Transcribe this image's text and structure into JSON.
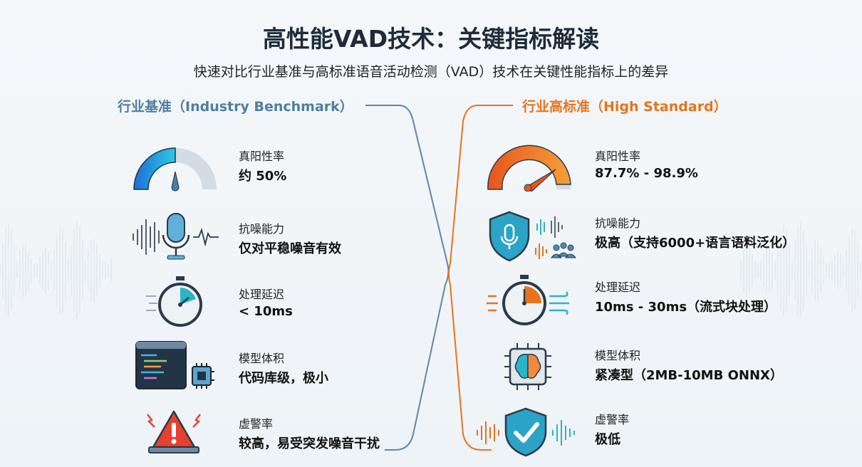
{
  "title": "高性能VAD技术：关键指标解读",
  "subtitle": "快速对比行业基准与高标准语音活动检测（VAD）技术在关键性能指标上的差异",
  "colors": {
    "benchmark": "#4d7f9f",
    "high_standard": "#e8731c",
    "gauge_blue": "#1e7fd8",
    "accent_teal": "#2ab5c6"
  },
  "benchmark": {
    "header": "行业基准（Industry Benchmark）",
    "items": [
      {
        "label": "真阳性率",
        "value": "约 50%",
        "icon": "gauge-icon",
        "gauge_level": 0.5
      },
      {
        "label": "抗噪能力",
        "value": "仅对平稳噪音有效",
        "icon": "microphone-waveform-icon"
      },
      {
        "label": "处理延迟",
        "value": "< 10ms",
        "icon": "stopwatch-icon"
      },
      {
        "label": "模型体积",
        "value": "代码库级，极小",
        "icon": "code-window-chip-icon"
      },
      {
        "label": "虚警率",
        "value": "较高，易受突发噪音干扰",
        "icon": "warning-alarm-icon"
      }
    ]
  },
  "high_standard": {
    "header": "行业高标准（High Standard）",
    "items": [
      {
        "label": "真阳性率",
        "value": "87.7% - 98.9%",
        "icon": "gauge-icon",
        "gauge_level": 0.93
      },
      {
        "label": "抗噪能力",
        "value": "极高（支持6000+语言语料泛化）",
        "icon": "shield-microphone-icon"
      },
      {
        "label": "处理延迟",
        "value": "10ms - 30ms（流式块处理）",
        "icon": "stopwatch-stream-icon"
      },
      {
        "label": "模型体积",
        "value": "紧凑型（2MB-10MB ONNX）",
        "icon": "brain-chip-icon"
      },
      {
        "label": "虚警率",
        "value": "极低",
        "icon": "shield-check-icon"
      }
    ]
  }
}
